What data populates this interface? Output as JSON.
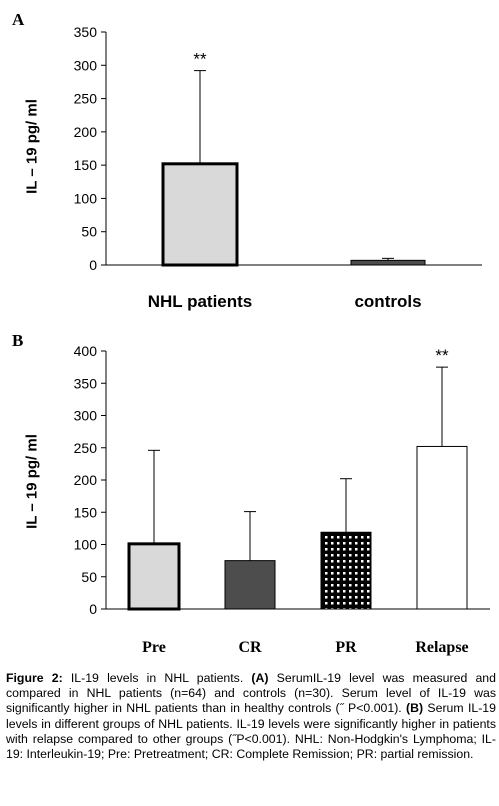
{
  "chart_data": [
    {
      "panel": "A",
      "type": "bar",
      "ylabel": "IL – 19 pg/ ml",
      "ylim": [
        0,
        350
      ],
      "yticks": [
        0,
        50,
        100,
        150,
        200,
        250,
        300,
        350
      ],
      "categories": [
        "NHL patients",
        "controls"
      ],
      "values": [
        152,
        7
      ],
      "error_upper": [
        292,
        10
      ],
      "annotations": [
        "**",
        ""
      ],
      "fills": [
        "#d9d9d9",
        "#4d4d4d"
      ],
      "patterns": [
        "none",
        "none"
      ],
      "borders": [
        "thick",
        "thin"
      ],
      "grid": false
    },
    {
      "panel": "B",
      "type": "bar",
      "ylabel": "IL – 19 pg/ ml",
      "ylim": [
        0,
        400
      ],
      "yticks": [
        0,
        50,
        100,
        150,
        200,
        250,
        300,
        350,
        400
      ],
      "categories": [
        "Pre",
        "CR",
        "PR",
        "Relapse"
      ],
      "values": [
        101,
        75,
        119,
        252
      ],
      "error_upper": [
        246,
        151,
        202,
        375
      ],
      "annotations": [
        "",
        "",
        "",
        "**"
      ],
      "fills": [
        "#d9d9d9",
        "#4d4d4d",
        "#000000",
        "#ffffff"
      ],
      "patterns": [
        "none",
        "none",
        "dots",
        "none"
      ],
      "borders": [
        "thick",
        "thin",
        "thin",
        "thin"
      ],
      "grid": false
    }
  ],
  "caption": {
    "figure_label": "Figure 2:",
    "intro": " IL-19 levels in NHL patients. ",
    "a_label": "(A)",
    "a_text": " SerumIL-19 level was measured and compared in NHL patients (n=64) and controls (n=30). Serum level of IL-19 was significantly higher in NHL patients than in healthy controls (˝ P<0.001). ",
    "b_label": "(B)",
    "b_text": " Serum IL-19 levels in different groups of NHL patients. IL-19 levels were significantly higher in patients with relapse compared to other groups (˝P<0.001). NHL: Non-Hodgkin's Lymphoma; IL-19: Interleukin-19; Pre: Pretreatment; CR: Complete Remission; PR: partial remission."
  },
  "panels": {
    "a_letter": "A",
    "b_letter": "B"
  }
}
